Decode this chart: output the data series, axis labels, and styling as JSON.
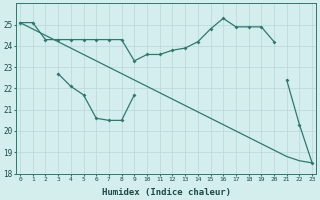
{
  "xlabel": "Humidex (Indice chaleur)",
  "x": [
    0,
    1,
    2,
    3,
    4,
    5,
    6,
    7,
    8,
    9,
    10,
    11,
    12,
    13,
    14,
    15,
    16,
    17,
    18,
    19,
    20,
    21,
    22,
    23
  ],
  "line1_x": [
    0,
    1,
    2,
    3,
    4,
    5,
    6,
    7,
    8,
    9,
    10,
    11,
    12,
    13,
    14,
    15,
    16,
    17,
    18,
    19,
    20
  ],
  "line1_y": [
    25.1,
    25.1,
    24.3,
    24.3,
    24.3,
    24.3,
    24.3,
    24.3,
    24.3,
    23.3,
    23.6,
    23.6,
    23.8,
    23.9,
    24.2,
    24.8,
    25.3,
    24.9,
    24.9,
    24.9,
    24.2
  ],
  "line2_x": [
    3,
    4,
    5,
    6,
    7,
    8,
    9,
    21,
    22,
    23
  ],
  "line2_y": [
    22.7,
    22.1,
    21.7,
    20.6,
    20.5,
    20.5,
    21.7,
    22.4,
    20.3,
    18.5
  ],
  "line3_x": [
    0,
    1,
    2,
    3,
    4,
    5,
    6,
    7,
    8,
    9,
    10,
    11,
    12,
    13,
    14,
    15,
    16,
    17,
    18,
    19,
    20,
    21,
    22,
    23
  ],
  "line3_y": [
    25.1,
    24.8,
    24.5,
    24.2,
    23.9,
    23.6,
    23.3,
    23.0,
    22.7,
    22.4,
    22.1,
    21.8,
    21.5,
    21.2,
    20.9,
    20.6,
    20.3,
    20.0,
    19.7,
    19.4,
    19.1,
    18.8,
    18.6,
    18.5
  ],
  "ylim": [
    18,
    26
  ],
  "xlim": [
    -0.3,
    23.3
  ],
  "yticks": [
    18,
    19,
    20,
    21,
    22,
    23,
    24,
    25
  ],
  "bg_color": "#d4eeee",
  "grid_color": "#b8d8d8",
  "line_color": "#2d7a6e"
}
